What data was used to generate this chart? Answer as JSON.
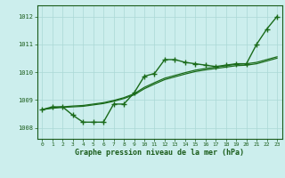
{
  "title": "Graphe pression niveau de la mer (hPa)",
  "xlabel_hours": [
    0,
    1,
    2,
    3,
    4,
    5,
    6,
    7,
    8,
    9,
    10,
    11,
    12,
    13,
    14,
    15,
    16,
    17,
    18,
    19,
    20,
    21,
    22,
    23
  ],
  "ylim": [
    1007.6,
    1012.4
  ],
  "yticks": [
    1008,
    1009,
    1010,
    1011,
    1012
  ],
  "background_color": "#cceeed",
  "grid_color": "#aad8d6",
  "line_color": "#1a6b1a",
  "series": {
    "line_marker": [
      1008.65,
      1008.75,
      1008.75,
      1008.45,
      1008.2,
      1008.2,
      1008.2,
      1008.85,
      1008.85,
      1009.25,
      1009.85,
      1009.95,
      1010.45,
      1010.45,
      1010.35,
      1010.3,
      1010.25,
      1010.2,
      1010.25,
      1010.3,
      1010.3,
      1011.0,
      1011.55,
      1012.0
    ],
    "line_smooth_upper": [
      1008.65,
      1008.72,
      1008.75,
      1008.78,
      1008.8,
      1008.85,
      1008.9,
      1008.98,
      1009.08,
      1009.22,
      1009.45,
      1009.62,
      1009.78,
      1009.88,
      1009.98,
      1010.07,
      1010.13,
      1010.18,
      1010.23,
      1010.28,
      1010.3,
      1010.35,
      1010.45,
      1010.55
    ],
    "line_smooth_lower": [
      1008.65,
      1008.7,
      1008.73,
      1008.75,
      1008.77,
      1008.82,
      1008.87,
      1008.95,
      1009.05,
      1009.18,
      1009.4,
      1009.57,
      1009.73,
      1009.83,
      1009.93,
      1010.02,
      1010.08,
      1010.13,
      1010.18,
      1010.23,
      1010.25,
      1010.3,
      1010.4,
      1010.5
    ]
  }
}
